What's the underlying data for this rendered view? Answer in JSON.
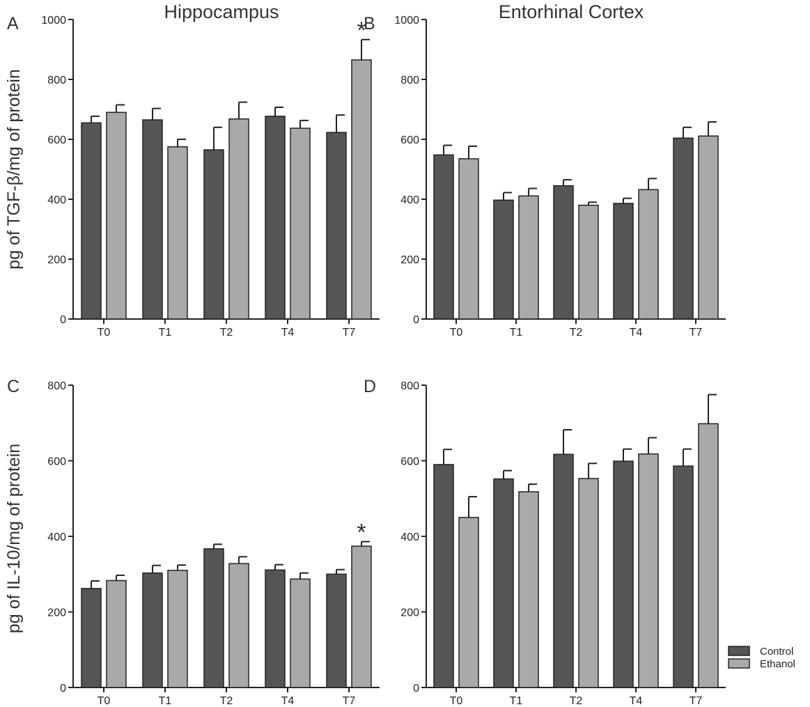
{
  "titles": {
    "col1": "Hippocampus",
    "col2": "Entorhinal Cortex"
  },
  "ylabels": {
    "row1": "pg of TGF-β/mg of protein",
    "row2": "pg of IL-10/mg of protein"
  },
  "legend": {
    "placement": "bottom-right",
    "items": [
      {
        "label": "Control",
        "color": "#555555"
      },
      {
        "label": "Ethanol",
        "color": "#a9a9a9"
      }
    ]
  },
  "colors": {
    "control": "#555555",
    "ethanol": "#a9a9a9",
    "axis": "#222222"
  },
  "chart_data": [
    {
      "panel": "A",
      "type": "bar",
      "categories": [
        "T0",
        "T1",
        "T2",
        "T4",
        "T7"
      ],
      "ylim": [
        0,
        1000
      ],
      "yticks": [
        0,
        200,
        400,
        600,
        800,
        1000
      ],
      "series": [
        {
          "name": "Control",
          "values": [
            655,
            665,
            565,
            677,
            623
          ],
          "errors": [
            22,
            38,
            75,
            30,
            58
          ]
        },
        {
          "name": "Ethanol",
          "values": [
            690,
            575,
            668,
            637,
            865
          ],
          "errors": [
            25,
            25,
            56,
            26,
            68
          ]
        }
      ],
      "annotations": [
        {
          "category": "T7",
          "series": "Ethanol",
          "text": "*"
        }
      ]
    },
    {
      "panel": "B",
      "type": "bar",
      "categories": [
        "T0",
        "T1",
        "T2",
        "T4",
        "T7"
      ],
      "ylim": [
        0,
        1000
      ],
      "yticks": [
        0,
        200,
        400,
        600,
        800,
        1000
      ],
      "series": [
        {
          "name": "Control",
          "values": [
            548,
            397,
            445,
            386,
            604
          ],
          "errors": [
            32,
            25,
            20,
            17,
            36
          ]
        },
        {
          "name": "Ethanol",
          "values": [
            535,
            411,
            380,
            432,
            611
          ],
          "errors": [
            42,
            25,
            10,
            37,
            47
          ]
        }
      ],
      "annotations": []
    },
    {
      "panel": "C",
      "type": "bar",
      "categories": [
        "T0",
        "T1",
        "T2",
        "T4",
        "T7"
      ],
      "ylim": [
        0,
        800
      ],
      "yticks": [
        0,
        200,
        400,
        600,
        800
      ],
      "series": [
        {
          "name": "Control",
          "values": [
            262,
            303,
            367,
            311,
            300
          ],
          "errors": [
            20,
            20,
            12,
            14,
            12
          ]
        },
        {
          "name": "Ethanol",
          "values": [
            283,
            310,
            328,
            287,
            374
          ],
          "errors": [
            14,
            14,
            18,
            16,
            12
          ]
        }
      ],
      "annotations": [
        {
          "category": "T7",
          "series": "Ethanol",
          "text": "*"
        }
      ]
    },
    {
      "panel": "D",
      "type": "bar",
      "categories": [
        "T0",
        "T1",
        "T2",
        "T4",
        "T7"
      ],
      "ylim": [
        0,
        800
      ],
      "yticks": [
        0,
        200,
        400,
        600,
        800
      ],
      "series": [
        {
          "name": "Control",
          "values": [
            590,
            552,
            617,
            599,
            586
          ],
          "errors": [
            40,
            22,
            65,
            32,
            45
          ]
        },
        {
          "name": "Ethanol",
          "values": [
            450,
            518,
            553,
            618,
            698
          ],
          "errors": [
            55,
            20,
            40,
            43,
            77
          ]
        }
      ],
      "annotations": []
    }
  ]
}
